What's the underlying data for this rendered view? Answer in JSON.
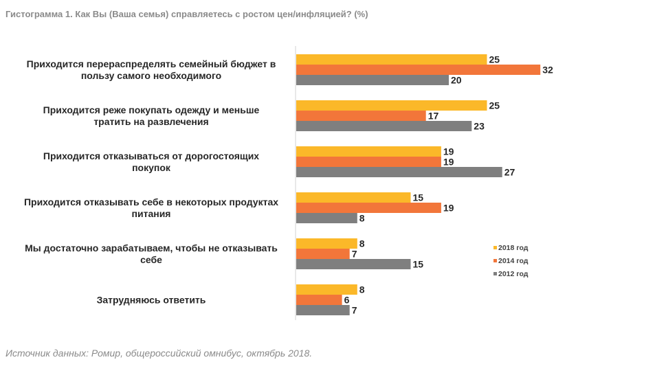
{
  "title": "Гистограмма 1. Как Вы (Ваша семья) справляетесь с ростом цен/инфляцией? (%)",
  "source": "Источник данных: Ромир, общероссийский омнибус, октябрь 2018.",
  "chart_data": {
    "type": "bar",
    "orientation": "horizontal",
    "categories": [
      [
        "Приходится перераспределять семейный бюджет в",
        "пользу самого необходимого"
      ],
      [
        "Приходится реже покупать одежду и меньше",
        "тратить на развлечения"
      ],
      [
        "Приходится отказываться от дорогостоящих",
        "покупок"
      ],
      [
        "Приходится отказывать себе в некоторых продуктах",
        "питания"
      ],
      [
        "Мы достаточно зарабатываем, чтобы не отказывать",
        "себе"
      ],
      [
        "Затрудняюсь ответить"
      ]
    ],
    "series": [
      {
        "name": "2018 год",
        "color": "#FBB829",
        "values": [
          25,
          25,
          19,
          15,
          8,
          8
        ]
      },
      {
        "name": "2014 год",
        "color": "#F2763A",
        "values": [
          32,
          17,
          19,
          19,
          7,
          6
        ]
      },
      {
        "name": "2012 год",
        "color": "#7F7F7F",
        "values": [
          20,
          23,
          27,
          8,
          15,
          7
        ]
      }
    ],
    "data_labels": true,
    "legend_position": "right",
    "grid": false
  }
}
